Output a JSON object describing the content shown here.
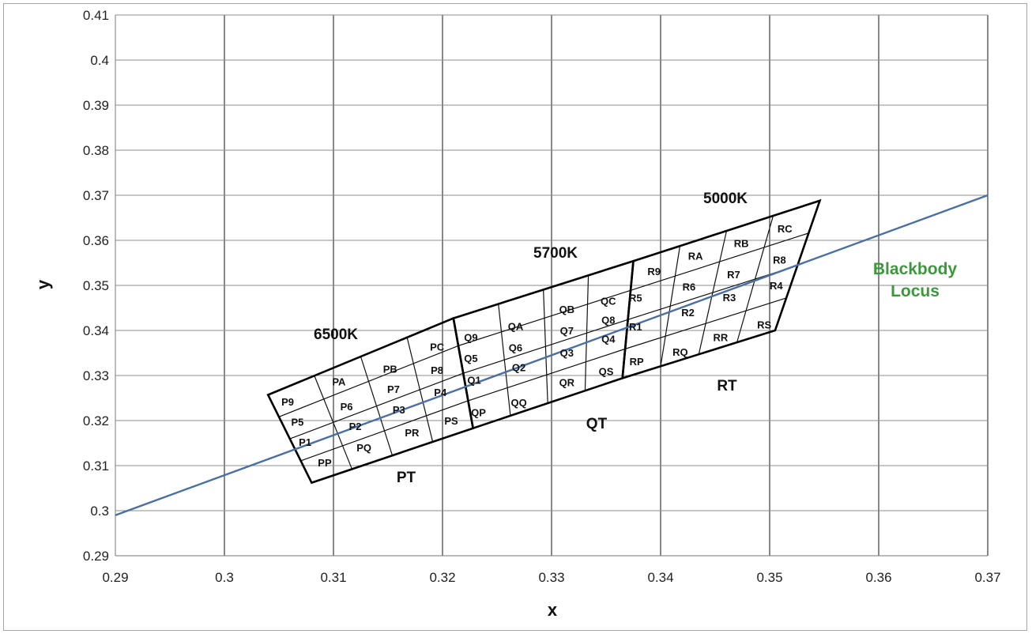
{
  "chart_data": {
    "type": "line",
    "xlabel": "x",
    "ylabel": "y",
    "xlim": [
      0.29,
      0.37
    ],
    "ylim": [
      0.29,
      0.41
    ],
    "x_ticks": [
      "0.29",
      "0.3",
      "0.31",
      "0.32",
      "0.33",
      "0.34",
      "0.35",
      "0.36",
      "0.37"
    ],
    "y_ticks": [
      "0.29",
      "0.3",
      "0.31",
      "0.32",
      "0.33",
      "0.34",
      "0.35",
      "0.36",
      "0.37",
      "0.38",
      "0.39",
      "0.4",
      "0.41"
    ],
    "grid": true,
    "blackbody_locus": {
      "label_lines": [
        "Blackbody",
        "Locus"
      ],
      "color": "#4a6fa5",
      "label_color": "#3a9a3a",
      "x": [
        0.29,
        0.37
      ],
      "y": [
        0.299,
        0.37
      ]
    },
    "quadrangles": [
      {
        "cct_label": "6500K",
        "group_label": "PT",
        "corners": {
          "tl": [
            0.304,
            0.3257
          ],
          "tr": [
            0.321,
            0.3427
          ],
          "br": [
            0.3228,
            0.3183
          ],
          "bl": [
            0.308,
            0.3062
          ]
        }
      },
      {
        "cct_label": "5700K",
        "group_label": "QT",
        "corners": {
          "tl": [
            0.321,
            0.3427
          ],
          "tr": [
            0.3375,
            0.3554
          ],
          "br": [
            0.3365,
            0.3294
          ],
          "bl": [
            0.3228,
            0.3183
          ]
        }
      },
      {
        "cct_label": "5000K",
        "group_label": "RT",
        "corners": {
          "tl": [
            0.3375,
            0.3554
          ],
          "tr": [
            0.3546,
            0.3688
          ],
          "br": [
            0.3505,
            0.34
          ],
          "bl": [
            0.3365,
            0.3294
          ]
        }
      }
    ],
    "bin_labels": [
      {
        "text": "P9",
        "x": 0.3058,
        "y": 0.3242
      },
      {
        "text": "PA",
        "x": 0.3105,
        "y": 0.3287
      },
      {
        "text": "PB",
        "x": 0.3152,
        "y": 0.3315
      },
      {
        "text": "PC",
        "x": 0.3195,
        "y": 0.3364
      },
      {
        "text": "P5",
        "x": 0.3067,
        "y": 0.3197
      },
      {
        "text": "P6",
        "x": 0.3112,
        "y": 0.3232
      },
      {
        "text": "P7",
        "x": 0.3155,
        "y": 0.327
      },
      {
        "text": "P8",
        "x": 0.3195,
        "y": 0.3312
      },
      {
        "text": "P1",
        "x": 0.3074,
        "y": 0.3153
      },
      {
        "text": "P2",
        "x": 0.312,
        "y": 0.3188
      },
      {
        "text": "P3",
        "x": 0.316,
        "y": 0.3225
      },
      {
        "text": "P4",
        "x": 0.3198,
        "y": 0.3263
      },
      {
        "text": "PP",
        "x": 0.3092,
        "y": 0.3107
      },
      {
        "text": "PQ",
        "x": 0.3128,
        "y": 0.314
      },
      {
        "text": "PR",
        "x": 0.3172,
        "y": 0.3174
      },
      {
        "text": "PS",
        "x": 0.3208,
        "y": 0.32
      },
      {
        "text": "Q9",
        "x": 0.3226,
        "y": 0.3385
      },
      {
        "text": "QA",
        "x": 0.3267,
        "y": 0.341
      },
      {
        "text": "QB",
        "x": 0.3314,
        "y": 0.3447
      },
      {
        "text": "QC",
        "x": 0.3352,
        "y": 0.3466
      },
      {
        "text": "Q5",
        "x": 0.3226,
        "y": 0.3339
      },
      {
        "text": "Q6",
        "x": 0.3267,
        "y": 0.3362
      },
      {
        "text": "Q7",
        "x": 0.3314,
        "y": 0.34
      },
      {
        "text": "Q8",
        "x": 0.3352,
        "y": 0.3424
      },
      {
        "text": "Q1",
        "x": 0.3229,
        "y": 0.329
      },
      {
        "text": "Q2",
        "x": 0.327,
        "y": 0.3318
      },
      {
        "text": "Q3",
        "x": 0.3314,
        "y": 0.3351
      },
      {
        "text": "Q4",
        "x": 0.3352,
        "y": 0.3382
      },
      {
        "text": "QP",
        "x": 0.3233,
        "y": 0.3218
      },
      {
        "text": "QQ",
        "x": 0.327,
        "y": 0.324
      },
      {
        "text": "QR",
        "x": 0.3314,
        "y": 0.3285
      },
      {
        "text": "QS",
        "x": 0.335,
        "y": 0.331
      },
      {
        "text": "R9",
        "x": 0.3394,
        "y": 0.3532
      },
      {
        "text": "RA",
        "x": 0.3432,
        "y": 0.3566
      },
      {
        "text": "RB",
        "x": 0.3474,
        "y": 0.3594
      },
      {
        "text": "RC",
        "x": 0.3514,
        "y": 0.3626
      },
      {
        "text": "R5",
        "x": 0.3377,
        "y": 0.3473
      },
      {
        "text": "R6",
        "x": 0.3426,
        "y": 0.3497
      },
      {
        "text": "R7",
        "x": 0.3467,
        "y": 0.3525
      },
      {
        "text": "R8",
        "x": 0.3509,
        "y": 0.3557
      },
      {
        "text": "R1",
        "x": 0.3377,
        "y": 0.3409
      },
      {
        "text": "R2",
        "x": 0.3425,
        "y": 0.344
      },
      {
        "text": "R3",
        "x": 0.3463,
        "y": 0.3474
      },
      {
        "text": "R4",
        "x": 0.3506,
        "y": 0.35
      },
      {
        "text": "RP",
        "x": 0.3378,
        "y": 0.3332
      },
      {
        "text": "RQ",
        "x": 0.3418,
        "y": 0.3353
      },
      {
        "text": "RR",
        "x": 0.3455,
        "y": 0.3385
      },
      {
        "text": "RS",
        "x": 0.3495,
        "y": 0.3413
      }
    ]
  }
}
